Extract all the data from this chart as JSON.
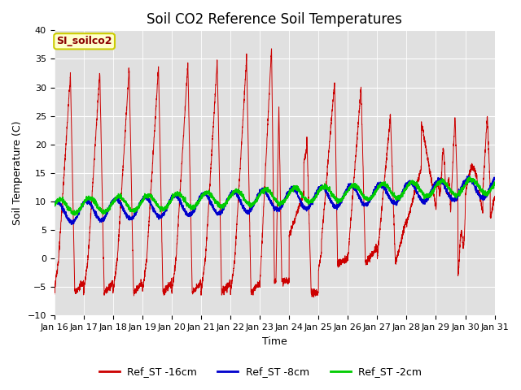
{
  "title": "Soil CO2 Reference Soil Temperatures",
  "xlabel": "Time",
  "ylabel": "Soil Temperature (C)",
  "ylim": [
    -10,
    40
  ],
  "yticks": [
    -10,
    -5,
    0,
    5,
    10,
    15,
    20,
    25,
    30,
    35,
    40
  ],
  "xtick_labels": [
    "Jan 16",
    "Jan 17",
    "Jan 18",
    "Jan 19",
    "Jan 20",
    "Jan 21",
    "Jan 22",
    "Jan 23",
    "Jan 24",
    "Jan 25",
    "Jan 26",
    "Jan 27",
    "Jan 28",
    "Jan 29",
    "Jan 30",
    "Jan 31"
  ],
  "legend_label": "SI_soilco2",
  "legend_entries": [
    "Ref_ST -16cm",
    "Ref_ST -8cm",
    "Ref_ST -2cm"
  ],
  "legend_colors": [
    "#cc0000",
    "#0000cc",
    "#00cc00"
  ],
  "fig_bg_color": "#ffffff",
  "plot_bg_color": "#e0e0e0",
  "grid_color": "#ffffff",
  "title_fontsize": 12,
  "axis_label_fontsize": 9,
  "tick_fontsize": 8,
  "annotation_fontsize": 9,
  "legend_fontsize": 9
}
